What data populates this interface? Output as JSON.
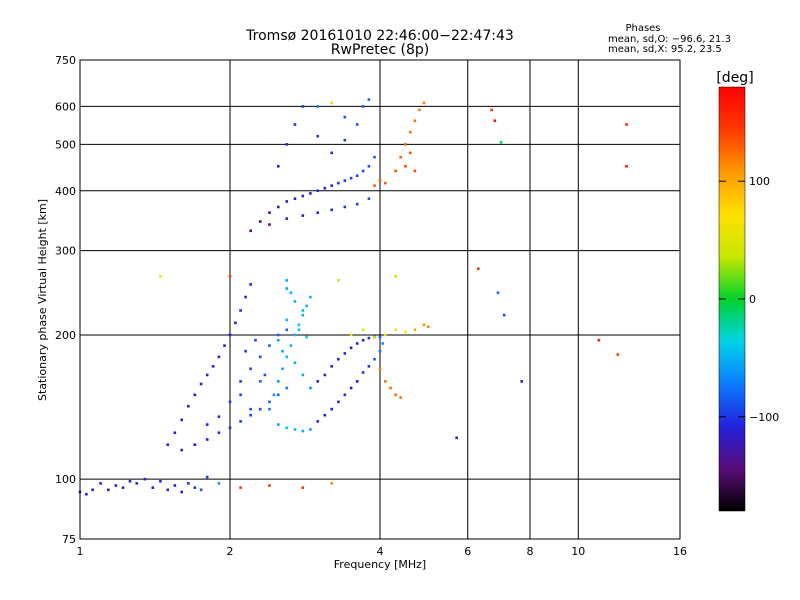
{
  "chart_data": {
    "type": "scatter",
    "title": "Tromsø 20161010 22:46:00−22:47:43",
    "subtitle": "RwPretec (8p)",
    "xlabel": "Frequency [MHz]",
    "ylabel": "Stationary phase Virtual Height [km]",
    "x_scale": "log2",
    "y_scale": "log",
    "xlim": [
      1,
      16
    ],
    "ylim": [
      75,
      750
    ],
    "x_ticks": [
      1,
      2,
      4,
      6,
      8,
      10,
      16
    ],
    "x_tick_labels": [
      "1",
      "2",
      "4",
      "6",
      "8",
      "10",
      "16"
    ],
    "y_ticks": [
      75,
      100,
      200,
      300,
      400,
      500,
      600,
      750
    ],
    "y_tick_labels": [
      "75",
      "100",
      "200",
      "300",
      "400",
      "500",
      "600",
      "750"
    ],
    "grid": true,
    "info": {
      "heading": "Phases",
      "line_o": "mean, sd,O: −96.6, 21.3",
      "line_x": "mean, sd,X:  95.2, 23.5"
    },
    "colorbar": {
      "label": "[deg]",
      "ticks": [
        100,
        0,
        -100
      ],
      "tick_labels": [
        "100",
        "0",
        "−100"
      ],
      "range": [
        -180,
        180
      ],
      "palette": [
        "#000000",
        "#5a0c78",
        "#2222dd",
        "#0a7cff",
        "#00d4e8",
        "#00d22a",
        "#c8e800",
        "#ffe000",
        "#ff9800",
        "#ff3a00",
        "#ff0000"
      ]
    },
    "series": [
      {
        "points": [
          [
            1.0,
            94,
            -120
          ],
          [
            1.03,
            93,
            -115
          ],
          [
            1.06,
            95,
            -118
          ],
          [
            1.1,
            98,
            -110
          ],
          [
            1.14,
            95,
            -115
          ],
          [
            1.18,
            97,
            -110
          ],
          [
            1.22,
            96,
            -112
          ],
          [
            1.26,
            99,
            -110
          ],
          [
            1.3,
            98,
            -105
          ],
          [
            1.35,
            100,
            -112
          ],
          [
            1.4,
            96,
            -110
          ],
          [
            1.45,
            99,
            -108
          ],
          [
            1.5,
            95,
            -115
          ],
          [
            1.55,
            97,
            -110
          ],
          [
            1.6,
            94,
            -112
          ],
          [
            1.65,
            98,
            -105
          ],
          [
            1.7,
            96,
            -100
          ],
          [
            1.75,
            95,
            -90
          ],
          [
            1.8,
            101,
            -95
          ],
          [
            1.9,
            98,
            -60
          ],
          [
            2.1,
            96,
            150
          ],
          [
            2.4,
            97,
            150
          ],
          [
            2.8,
            96,
            150
          ],
          [
            3.2,
            98,
            110
          ]
        ]
      },
      {
        "points": [
          [
            1.5,
            118,
            -110
          ],
          [
            1.55,
            125,
            -115
          ],
          [
            1.6,
            133,
            -118
          ],
          [
            1.65,
            142,
            -120
          ],
          [
            1.7,
            150,
            -115
          ],
          [
            1.75,
            158,
            -118
          ],
          [
            1.8,
            165,
            -112
          ],
          [
            1.85,
            172,
            -115
          ],
          [
            1.9,
            180,
            -110
          ],
          [
            1.95,
            190,
            -112
          ],
          [
            2.0,
            200,
            -108
          ],
          [
            2.05,
            212,
            -110
          ],
          [
            2.1,
            225,
            -105
          ],
          [
            2.15,
            240,
            -108
          ],
          [
            2.2,
            255,
            -110
          ],
          [
            1.6,
            115,
            -110
          ],
          [
            1.7,
            118,
            -108
          ],
          [
            1.8,
            121,
            -110
          ],
          [
            1.9,
            125,
            -105
          ],
          [
            2.0,
            128,
            -100
          ],
          [
            2.1,
            132,
            -100
          ],
          [
            2.2,
            136,
            -95
          ],
          [
            2.3,
            140,
            -90
          ],
          [
            2.4,
            145,
            -85
          ],
          [
            2.5,
            150,
            -80
          ],
          [
            2.6,
            155,
            -70
          ],
          [
            2.0,
            145,
            -100
          ],
          [
            2.1,
            150,
            -95
          ],
          [
            2.2,
            140,
            -90
          ],
          [
            2.3,
            160,
            -85
          ],
          [
            1.9,
            135,
            -105
          ],
          [
            1.8,
            130,
            -110
          ],
          [
            2.2,
            170,
            -95
          ],
          [
            2.3,
            180,
            -90
          ],
          [
            2.1,
            160,
            -98
          ],
          [
            2.4,
            190,
            -85
          ],
          [
            2.5,
            200,
            -80
          ],
          [
            2.6,
            205,
            -80
          ],
          [
            2.15,
            185,
            -100
          ],
          [
            2.25,
            195,
            -95
          ],
          [
            2.35,
            165,
            -90
          ]
        ]
      },
      {
        "points": [
          [
            2.4,
            140,
            -70
          ],
          [
            2.45,
            150,
            -65
          ],
          [
            2.5,
            160,
            -60
          ],
          [
            2.55,
            170,
            -55
          ],
          [
            2.6,
            180,
            -50
          ],
          [
            2.65,
            190,
            -50
          ],
          [
            2.7,
            200,
            -45
          ],
          [
            2.75,
            210,
            -45
          ],
          [
            2.8,
            220,
            -50
          ],
          [
            2.85,
            230,
            -50
          ],
          [
            2.9,
            240,
            -50
          ],
          [
            2.6,
            250,
            -55
          ],
          [
            2.7,
            235,
            -50
          ],
          [
            2.8,
            225,
            -45
          ],
          [
            2.6,
            215,
            -50
          ],
          [
            2.5,
            195,
            -55
          ],
          [
            2.55,
            185,
            -55
          ],
          [
            2.7,
            175,
            -50
          ],
          [
            2.8,
            165,
            -55
          ],
          [
            2.9,
            155,
            -60
          ],
          [
            2.6,
            260,
            -55
          ],
          [
            2.65,
            245,
            -50
          ],
          [
            2.75,
            205,
            -45
          ],
          [
            2.85,
            198,
            -40
          ],
          [
            2.5,
            130,
            -55
          ],
          [
            2.6,
            128,
            -40
          ],
          [
            2.7,
            127,
            -45
          ],
          [
            2.8,
            126,
            -50
          ],
          [
            2.9,
            127,
            -55
          ]
        ]
      },
      {
        "points": [
          [
            3.0,
            132,
            -110
          ],
          [
            3.1,
            136,
            -110
          ],
          [
            3.2,
            140,
            -108
          ],
          [
            3.3,
            145,
            -110
          ],
          [
            3.4,
            150,
            -105
          ],
          [
            3.5,
            155,
            -110
          ],
          [
            3.6,
            160,
            -108
          ],
          [
            3.7,
            167,
            -100
          ],
          [
            3.8,
            172,
            -100
          ],
          [
            3.9,
            178,
            -85
          ],
          [
            4.0,
            185,
            -70
          ],
          [
            4.05,
            192,
            -60
          ],
          [
            3.0,
            160,
            -112
          ],
          [
            3.1,
            165,
            -110
          ],
          [
            3.2,
            172,
            -110
          ],
          [
            3.3,
            178,
            -108
          ],
          [
            3.4,
            183,
            -110
          ],
          [
            3.5,
            188,
            -112
          ],
          [
            3.6,
            192,
            -110
          ],
          [
            3.7,
            195,
            -108
          ],
          [
            3.8,
            197,
            -100
          ],
          [
            3.9,
            198,
            -95
          ],
          [
            4.0,
            198,
            -80
          ]
        ]
      },
      {
        "points": [
          [
            3.5,
            200,
            60
          ],
          [
            3.7,
            205,
            50
          ],
          [
            3.9,
            198,
            45
          ],
          [
            4.1,
            200,
            55
          ],
          [
            4.3,
            205,
            60
          ],
          [
            4.5,
            203,
            70
          ],
          [
            4.7,
            205,
            100
          ],
          [
            4.9,
            210,
            110
          ],
          [
            5.0,
            208,
            115
          ],
          [
            4.0,
            170,
            120
          ],
          [
            4.1,
            160,
            125
          ],
          [
            4.2,
            155,
            125
          ],
          [
            4.3,
            150,
            125
          ],
          [
            4.4,
            148,
            120
          ]
        ]
      },
      {
        "points": [
          [
            2.2,
            330,
            -150
          ],
          [
            2.3,
            345,
            -145
          ],
          [
            2.4,
            360,
            -140
          ],
          [
            2.5,
            370,
            -130
          ],
          [
            2.6,
            380,
            -120
          ],
          [
            2.7,
            385,
            -115
          ],
          [
            2.8,
            390,
            -110
          ],
          [
            2.9,
            395,
            -108
          ],
          [
            3.0,
            400,
            -105
          ],
          [
            3.1,
            405,
            -110
          ],
          [
            3.2,
            410,
            -105
          ],
          [
            3.3,
            415,
            -100
          ],
          [
            3.4,
            420,
            -100
          ],
          [
            3.5,
            425,
            -95
          ],
          [
            3.6,
            430,
            -95
          ],
          [
            3.7,
            440,
            -90
          ],
          [
            3.8,
            450,
            -88
          ],
          [
            3.9,
            470,
            -85
          ],
          [
            2.4,
            340,
            -140
          ],
          [
            2.6,
            350,
            -130
          ],
          [
            2.8,
            355,
            -115
          ],
          [
            3.0,
            360,
            -110
          ],
          [
            3.2,
            365,
            -105
          ],
          [
            3.4,
            370,
            -100
          ],
          [
            3.6,
            375,
            -95
          ],
          [
            3.8,
            385,
            -90
          ],
          [
            2.5,
            450,
            -115
          ],
          [
            2.6,
            500,
            -110
          ],
          [
            2.7,
            550,
            -105
          ],
          [
            2.8,
            600,
            -100
          ],
          [
            3.0,
            520,
            -100
          ],
          [
            3.2,
            480,
            -105
          ],
          [
            3.4,
            510,
            -95
          ],
          [
            3.6,
            550,
            -90
          ],
          [
            3.7,
            600,
            -85
          ],
          [
            3.8,
            620,
            -80
          ],
          [
            3.0,
            600,
            -70
          ],
          [
            3.2,
            610,
            80
          ],
          [
            3.4,
            570,
            -90
          ]
        ]
      },
      {
        "points": [
          [
            3.9,
            410,
            130
          ],
          [
            4.0,
            420,
            130
          ],
          [
            4.1,
            415,
            135
          ],
          [
            4.3,
            440,
            135
          ],
          [
            4.4,
            470,
            130
          ],
          [
            4.5,
            500,
            128
          ],
          [
            4.6,
            530,
            125
          ],
          [
            4.7,
            560,
            125
          ],
          [
            4.8,
            590,
            120
          ],
          [
            4.9,
            610,
            120
          ],
          [
            4.5,
            450,
            140
          ],
          [
            4.6,
            480,
            135
          ],
          [
            4.7,
            440,
            140
          ]
        ]
      },
      {
        "points": [
          [
            1.45,
            265,
            60
          ],
          [
            2.0,
            265,
            140
          ],
          [
            3.3,
            260,
            40
          ],
          [
            4.3,
            265,
            40
          ],
          [
            6.3,
            275,
            150
          ],
          [
            6.9,
            245,
            -80
          ],
          [
            7.1,
            220,
            -90
          ],
          [
            6.7,
            590,
            150
          ],
          [
            6.8,
            560,
            170
          ],
          [
            7.0,
            505,
            -10
          ],
          [
            12.5,
            550,
            160
          ],
          [
            12.5,
            450,
            170
          ],
          [
            11.0,
            195,
            165
          ],
          [
            12.0,
            182,
            140
          ],
          [
            7.7,
            160,
            -120
          ],
          [
            5.7,
            122,
            -120
          ]
        ]
      }
    ]
  }
}
